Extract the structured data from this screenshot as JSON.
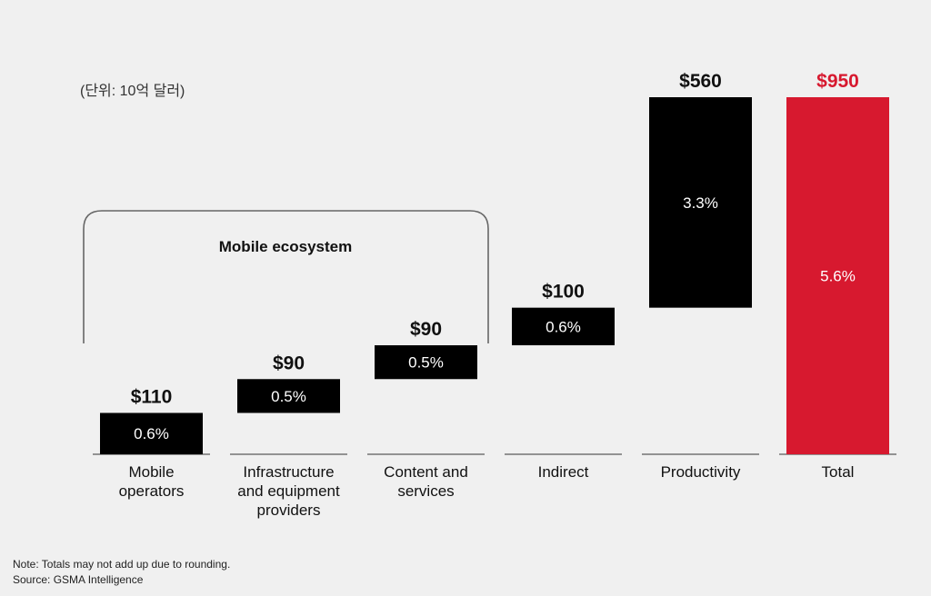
{
  "chart_data": {
    "type": "bar",
    "subtype": "waterfall",
    "unit_label": "(단위: 10억 달러)",
    "categories": [
      [
        "Mobile",
        "operators"
      ],
      [
        "Infrastructure",
        "and equipment",
        "providers"
      ],
      [
        "Content and",
        "services"
      ],
      [
        "Indirect"
      ],
      [
        "Productivity"
      ],
      [
        "Total"
      ]
    ],
    "values": [
      110,
      90,
      90,
      100,
      560,
      950
    ],
    "value_labels": [
      "$110",
      "$90",
      "$90",
      "$100",
      "$560",
      "$950"
    ],
    "share_labels": [
      "0.6%",
      "0.5%",
      "0.5%",
      "0.6%",
      "3.3%",
      "5.6%"
    ],
    "bar_colors": [
      "#000000",
      "#000000",
      "#000000",
      "#000000",
      "#000000",
      "#d7192f"
    ],
    "value_label_colors": [
      "#111111",
      "#111111",
      "#111111",
      "#111111",
      "#111111",
      "#d7192f"
    ],
    "group": {
      "label": "Mobile ecosystem",
      "members": [
        0,
        1,
        2
      ]
    },
    "ylim": [
      0,
      950
    ]
  },
  "notes": [
    "Note: Totals may not add up due to rounding.",
    "Source: GSMA Intelligence"
  ]
}
